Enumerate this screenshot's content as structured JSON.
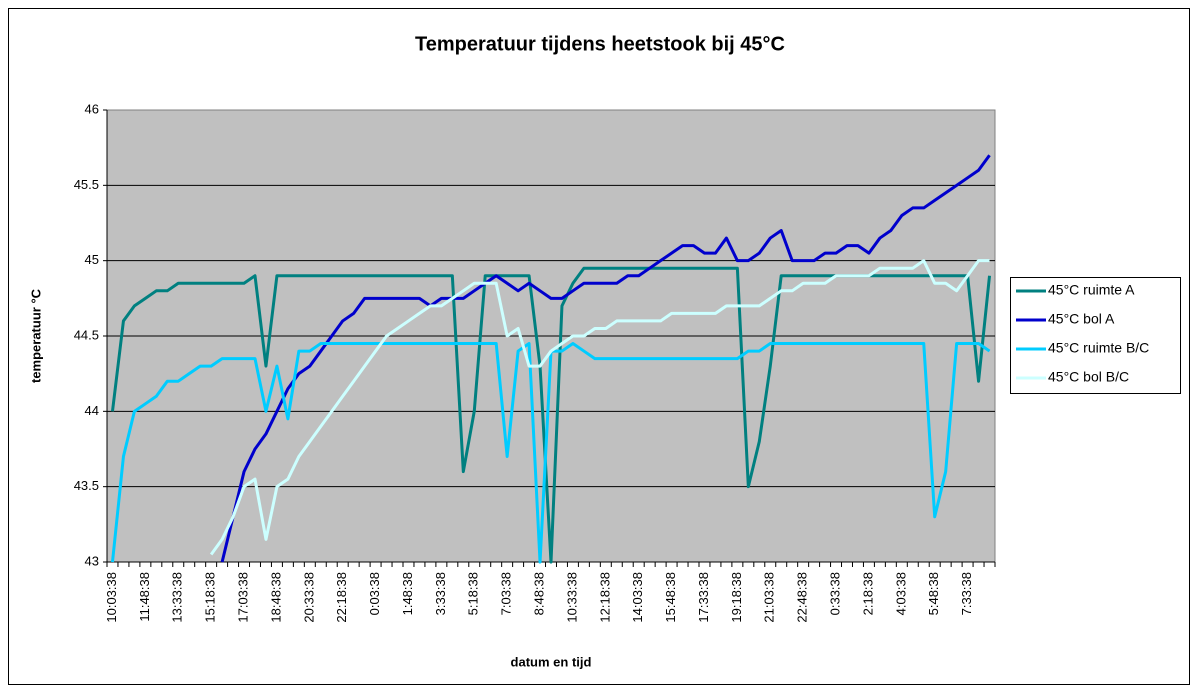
{
  "chart_data": {
    "type": "line",
    "title": "Temperatuur tijdens heetstook bij 45°C",
    "xlabel": "datum en tijd",
    "ylabel": "temperatuur °C",
    "categories": [
      "10:03:38",
      null,
      null,
      "11:48:38",
      null,
      null,
      "13:33:38",
      null,
      null,
      "15:18:38",
      null,
      null,
      "17:03:38",
      null,
      null,
      "18:48:38",
      null,
      null,
      "20:33:38",
      null,
      null,
      "22:18:38",
      null,
      null,
      "0:03:38",
      null,
      null,
      "1:48:38",
      null,
      null,
      "3:33:38",
      null,
      null,
      "5:18:38",
      null,
      null,
      "7:03:38",
      null,
      null,
      "8:48:38",
      null,
      null,
      "10:33:38",
      null,
      null,
      "12:18:38",
      null,
      null,
      "14:03:38",
      null,
      null,
      "15:48:38",
      null,
      null,
      "17:33:38",
      null,
      null,
      "19:18:38",
      null,
      null,
      "21:03:38",
      null,
      null,
      "22:48:38",
      null,
      null,
      "0:33:38",
      null,
      null,
      "2:18:38",
      null,
      null,
      "4:03:38",
      null,
      null,
      "5:48:38",
      null,
      null,
      "7:33:38",
      null,
      null
    ],
    "series": [
      {
        "name": "45°C ruimte A",
        "color": "#008080",
        "values": [
          44.0,
          44.6,
          44.7,
          44.75,
          44.8,
          44.8,
          44.85,
          44.85,
          44.85,
          44.85,
          44.85,
          44.85,
          44.85,
          44.9,
          44.3,
          44.9,
          44.9,
          44.9,
          44.9,
          44.9,
          44.9,
          44.9,
          44.9,
          44.9,
          44.9,
          44.9,
          44.9,
          44.9,
          44.9,
          44.9,
          44.9,
          44.9,
          43.6,
          44.0,
          44.9,
          44.9,
          44.9,
          44.9,
          44.9,
          44.3,
          43.0,
          44.7,
          44.85,
          44.95,
          44.95,
          44.95,
          44.95,
          44.95,
          44.95,
          44.95,
          44.95,
          44.95,
          44.95,
          44.95,
          44.95,
          44.95,
          44.95,
          44.95,
          43.5,
          43.8,
          44.3,
          44.9,
          44.9,
          44.9,
          44.9,
          44.9,
          44.9,
          44.9,
          44.9,
          44.9,
          44.9,
          44.9,
          44.9,
          44.9,
          44.9,
          44.9,
          44.9,
          44.9,
          44.9,
          44.2,
          44.9
        ]
      },
      {
        "name": "45°C bol A",
        "color": "#0000cc",
        "values": [
          null,
          null,
          null,
          null,
          null,
          null,
          null,
          null,
          null,
          null,
          43.0,
          43.3,
          43.6,
          43.75,
          43.85,
          44.0,
          44.15,
          44.25,
          44.3,
          44.4,
          44.5,
          44.6,
          44.65,
          44.75,
          44.75,
          44.75,
          44.75,
          44.75,
          44.75,
          44.7,
          44.75,
          44.75,
          44.75,
          44.8,
          44.85,
          44.9,
          44.85,
          44.8,
          44.85,
          44.8,
          44.75,
          44.75,
          44.8,
          44.85,
          44.85,
          44.85,
          44.85,
          44.9,
          44.9,
          44.95,
          45.0,
          45.05,
          45.1,
          45.1,
          45.05,
          45.05,
          45.15,
          45.0,
          45.0,
          45.05,
          45.15,
          45.2,
          45.0,
          45.0,
          45.0,
          45.05,
          45.05,
          45.1,
          45.1,
          45.05,
          45.15,
          45.2,
          45.3,
          45.35,
          45.35,
          45.4,
          45.45,
          45.5,
          45.55,
          45.6,
          45.7
        ]
      },
      {
        "name": "45°C ruimte B/C",
        "color": "#00ccff",
        "values": [
          43.0,
          43.7,
          44.0,
          44.05,
          44.1,
          44.2,
          44.2,
          44.25,
          44.3,
          44.3,
          44.35,
          44.35,
          44.35,
          44.35,
          44.0,
          44.3,
          43.95,
          44.4,
          44.4,
          44.45,
          44.45,
          44.45,
          44.45,
          44.45,
          44.45,
          44.45,
          44.45,
          44.45,
          44.45,
          44.45,
          44.45,
          44.45,
          44.45,
          44.45,
          44.45,
          44.45,
          43.7,
          44.4,
          44.45,
          43.0,
          44.4,
          44.4,
          44.45,
          44.4,
          44.35,
          44.35,
          44.35,
          44.35,
          44.35,
          44.35,
          44.35,
          44.35,
          44.35,
          44.35,
          44.35,
          44.35,
          44.35,
          44.35,
          44.4,
          44.4,
          44.45,
          44.45,
          44.45,
          44.45,
          44.45,
          44.45,
          44.45,
          44.45,
          44.45,
          44.45,
          44.45,
          44.45,
          44.45,
          44.45,
          44.45,
          43.3,
          43.6,
          44.45,
          44.45,
          44.45,
          44.4
        ]
      },
      {
        "name": "45°C bol B/C",
        "color": "#ccffff",
        "values": [
          null,
          null,
          null,
          null,
          null,
          null,
          null,
          null,
          null,
          43.05,
          43.15,
          43.3,
          43.5,
          43.55,
          43.15,
          43.5,
          43.55,
          43.7,
          43.8,
          43.9,
          44.0,
          44.1,
          44.2,
          44.3,
          44.4,
          44.5,
          44.55,
          44.6,
          44.65,
          44.7,
          44.7,
          44.75,
          44.8,
          44.85,
          44.85,
          44.85,
          44.5,
          44.55,
          44.3,
          44.3,
          44.4,
          44.45,
          44.5,
          44.5,
          44.55,
          44.55,
          44.6,
          44.6,
          44.6,
          44.6,
          44.6,
          44.65,
          44.65,
          44.65,
          44.65,
          44.65,
          44.7,
          44.7,
          44.7,
          44.7,
          44.75,
          44.8,
          44.8,
          44.85,
          44.85,
          44.85,
          44.9,
          44.9,
          44.9,
          44.9,
          44.95,
          44.95,
          44.95,
          44.95,
          45.0,
          44.85,
          44.85,
          44.8,
          44.9,
          45.0,
          45.0
        ]
      }
    ],
    "ylim": [
      43,
      46
    ],
    "yticks": [
      43,
      43.5,
      44,
      44.5,
      45,
      45.5,
      46
    ],
    "grid": true,
    "legend": "right"
  }
}
